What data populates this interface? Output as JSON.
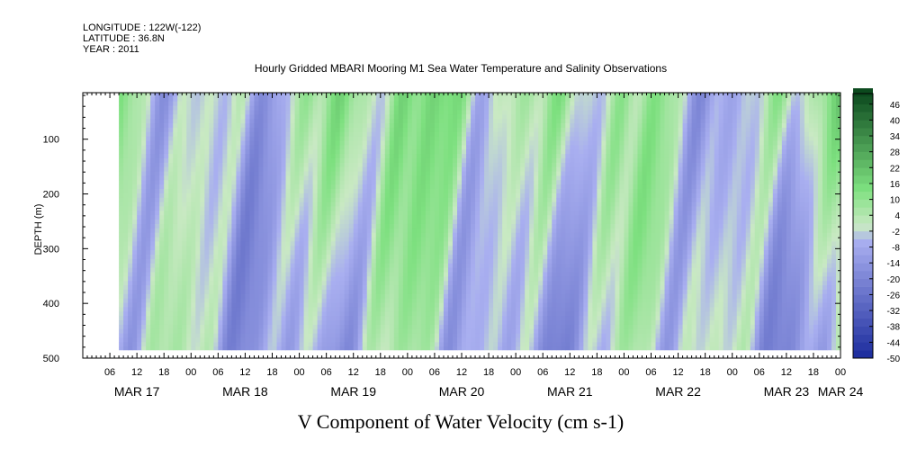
{
  "header": {
    "longitude": "LONGITUDE : 122W(-122)",
    "latitude": "LATITUDE : 36.8N",
    "year": "YEAR : 2011"
  },
  "chart_data": {
    "type": "heatmap",
    "title": "Hourly Gridded MBARI Mooring M1 Sea Water Temperature and Salinity Observations",
    "variable_title": "V Component of Water Velocity (cm s-1)",
    "ylabel": "DEPTH (m)",
    "y_axis": {
      "range": [
        500,
        15
      ],
      "inverted": true,
      "ticks": [
        100,
        200,
        300,
        400,
        500
      ]
    },
    "x_axis": {
      "start_hour": 0,
      "end_hour": 168,
      "hour_labels": [
        "06",
        "12",
        "18",
        "00",
        "06",
        "12",
        "18",
        "00",
        "06",
        "12",
        "18",
        "00",
        "06",
        "12",
        "18",
        "00",
        "06",
        "12",
        "18",
        "00",
        "06",
        "12",
        "18",
        "00",
        "06",
        "12",
        "18",
        "00"
      ],
      "hour_label_offsets": [
        6,
        12,
        18,
        24,
        30,
        36,
        42,
        48,
        54,
        60,
        66,
        72,
        78,
        84,
        90,
        96,
        102,
        108,
        114,
        120,
        126,
        132,
        138,
        144,
        150,
        156,
        162,
        168
      ],
      "day_labels": [
        "MAR 17",
        "MAR 18",
        "MAR 19",
        "MAR 20",
        "MAR 21",
        "MAR 22",
        "MAR 23",
        "MAR 24"
      ],
      "day_label_offsets": [
        12,
        36,
        60,
        84,
        108,
        132,
        156,
        168
      ]
    },
    "data_extent": {
      "hour_start": 8,
      "hour_end": 168,
      "depth_top": 15,
      "depth_bottom": 485
    },
    "colorbar": {
      "min": -50,
      "max": 50,
      "step": 3,
      "labels": [
        "46",
        "40",
        "34",
        "28",
        "22",
        "16",
        "10",
        "4",
        "-2",
        "-8",
        "-14",
        "-20",
        "-26",
        "-32",
        "-38",
        "-44",
        "-50"
      ],
      "label_values": [
        46,
        40,
        34,
        28,
        22,
        16,
        10,
        4,
        -2,
        -8,
        -14,
        -20,
        -26,
        -32,
        -38,
        -44,
        -50
      ]
    },
    "grid": false,
    "colors": {
      "negative_strong": "#1a2a9c",
      "negative_weak": "#a9aff0",
      "neutral": "#c9e9c3",
      "positive_weak": "#7de07f",
      "positive_strong": "#0c4a1e",
      "missing": "#ffffff"
    }
  }
}
